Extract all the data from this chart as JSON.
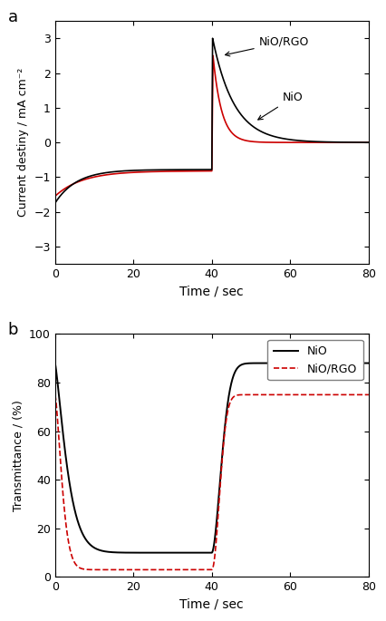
{
  "panel_a": {
    "xlabel": "Time / sec",
    "ylabel": "Current destiny / mA cm⁻²",
    "xlim": [
      0,
      80
    ],
    "ylim": [
      -3.5,
      3.5
    ],
    "yticks": [
      -3,
      -2,
      -1,
      0,
      1,
      2,
      3
    ],
    "xticks": [
      0,
      20,
      40,
      60,
      80
    ],
    "nio_color": "#cc0000",
    "nio_rgo_color": "#000000",
    "annotation_nio": "NiO",
    "annotation_nio_rgo": "NiO/RGO"
  },
  "panel_b": {
    "xlabel": "Time / sec",
    "ylabel": "Transmittance / (%)",
    "xlim": [
      0,
      80
    ],
    "ylim": [
      0,
      100
    ],
    "yticks": [
      0,
      20,
      40,
      60,
      80,
      100
    ],
    "xticks": [
      0,
      20,
      40,
      60,
      80
    ],
    "nio_color": "#000000",
    "nio_rgo_color": "#cc0000",
    "legend_nio": "NiO",
    "legend_nio_rgo": "NiO/RGO"
  }
}
